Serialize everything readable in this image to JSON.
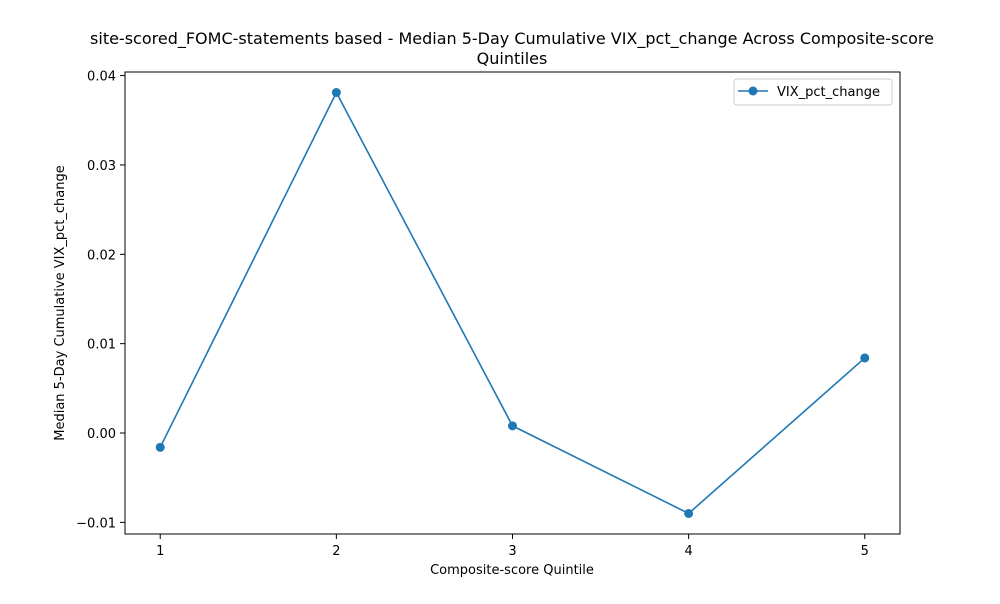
{
  "chart_data": {
    "type": "line",
    "title_line1": "site-scored_FOMC-statements based - Median 5-Day Cumulative VIX_pct_change Across Composite-score",
    "title_line2": "Quintiles",
    "xlabel": "Composite-score Quintile",
    "ylabel": "Median 5-Day Cumulative VIX_pct_change",
    "x": [
      1,
      2,
      3,
      4,
      5
    ],
    "x_tick_labels": [
      "1",
      "2",
      "3",
      "4",
      "5"
    ],
    "y_ticks": [
      -0.01,
      0.0,
      0.01,
      0.02,
      0.03,
      0.04
    ],
    "y_tick_labels": [
      "−0.01",
      "0.00",
      "0.01",
      "0.02",
      "0.03",
      "0.04"
    ],
    "xlim": [
      0.8,
      5.2
    ],
    "ylim": [
      -0.0113,
      0.0404
    ],
    "grid": false,
    "legend_position": "top-right",
    "series": [
      {
        "name": "VIX_pct_change",
        "color": "#1f77b4",
        "marker": "circle",
        "values": [
          -0.0016,
          0.0381,
          0.0008,
          -0.009,
          0.0084
        ]
      }
    ]
  }
}
